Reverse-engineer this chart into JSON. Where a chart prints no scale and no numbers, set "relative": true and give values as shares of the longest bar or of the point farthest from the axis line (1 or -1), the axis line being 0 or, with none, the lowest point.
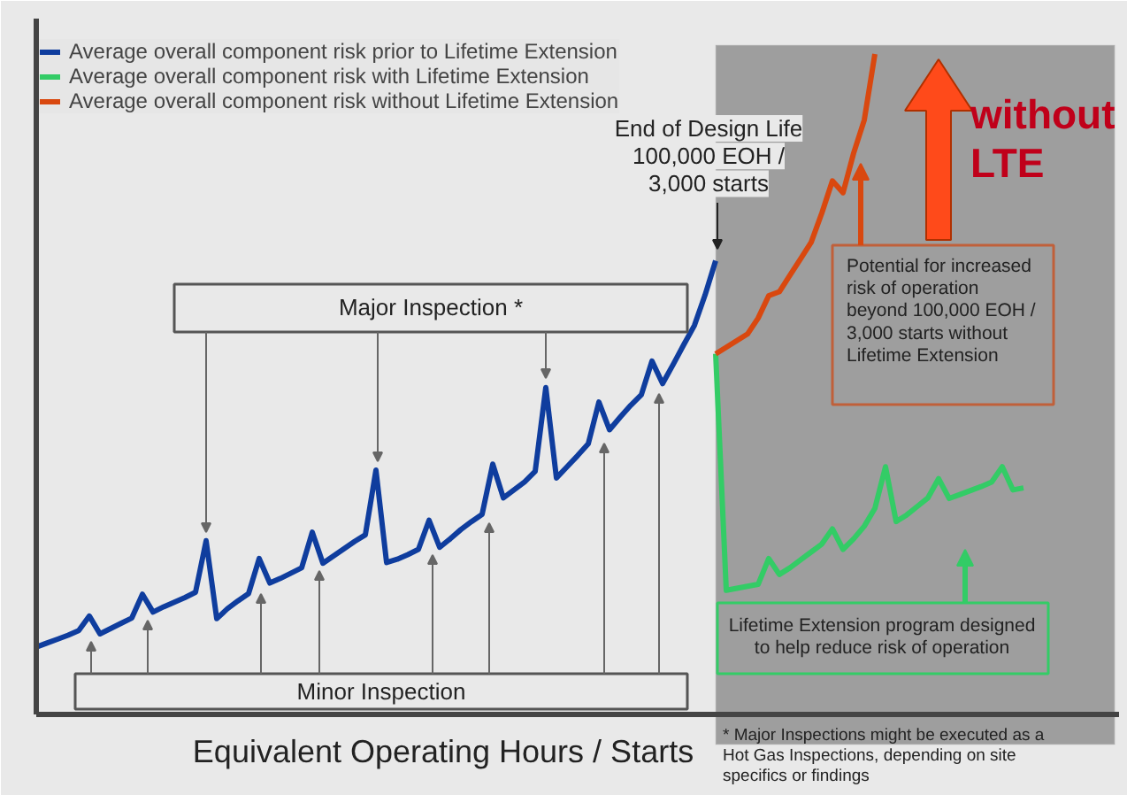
{
  "chart_data": {
    "type": "line",
    "relative": true,
    "xlabel": "Equivalent Operating Hours / Starts",
    "legend": "top left",
    "marker": "none",
    "line_style": "solid",
    "categories": [
      null,
      null,
      null,
      null,
      null,
      null,
      null,
      null,
      null,
      null,
      null,
      null,
      null,
      null,
      null,
      null,
      null,
      null,
      null,
      null,
      null,
      null,
      null,
      null,
      null,
      null,
      null,
      null,
      null,
      null,
      null,
      null,
      null,
      null,
      null,
      null,
      null,
      null,
      null,
      null,
      null,
      null,
      null,
      null,
      null,
      null,
      null,
      null,
      null,
      null,
      null,
      null,
      null,
      null,
      null,
      null,
      null,
      null,
      null,
      null,
      null,
      null,
      null,
      null,
      null,
      null,
      null,
      null,
      null,
      null,
      null,
      null,
      null,
      null,
      null,
      null,
      null,
      null,
      null,
      null,
      null,
      null,
      null,
      null,
      null,
      null,
      null,
      null,
      null,
      null,
      null,
      null,
      null,
      null,
      null,
      null,
      null,
      null,
      null,
      null,
      null,
      null
    ],
    "series": [
      {
        "name": "Average overall component risk prior to Lifetime Extension",
        "color": "#0f3d9e",
        "values": [
          0.102,
          0.108,
          0.114,
          0.12,
          0.127,
          0.149,
          0.122,
          0.13,
          0.138,
          0.146,
          0.182,
          0.155,
          0.163,
          0.17,
          0.177,
          0.185,
          0.263,
          0.145,
          0.16,
          0.172,
          0.183,
          0.236,
          0.199,
          0.206,
          0.214,
          0.222,
          0.276,
          0.229,
          0.24,
          0.251,
          0.262,
          0.272,
          0.37,
          0.23,
          0.235,
          0.242,
          0.25,
          0.294,
          0.253,
          0.266,
          0.28,
          0.292,
          0.303,
          0.379,
          0.328,
          0.34,
          0.352,
          0.368,
          0.495,
          0.358,
          0.375,
          0.392,
          0.41,
          0.473,
          0.431,
          0.45,
          0.468,
          0.484,
          0.535,
          0.501,
          0.53,
          0.56,
          0.589,
          0.635,
          0.687,
          null,
          null,
          null,
          null,
          null,
          null,
          null,
          null,
          null,
          null,
          null,
          null,
          null,
          null,
          null,
          null,
          null,
          null,
          null,
          null,
          null,
          null,
          null,
          null,
          null,
          null,
          null,
          null,
          null,
          null,
          null,
          null,
          null,
          null,
          null,
          null,
          null
        ]
      },
      {
        "name": "Average overall component risk with Lifetime Extension",
        "color": "#33cc66",
        "values": [
          null,
          null,
          null,
          null,
          null,
          null,
          null,
          null,
          null,
          null,
          null,
          null,
          null,
          null,
          null,
          null,
          null,
          null,
          null,
          null,
          null,
          null,
          null,
          null,
          null,
          null,
          null,
          null,
          null,
          null,
          null,
          null,
          null,
          null,
          null,
          null,
          null,
          null,
          null,
          null,
          null,
          null,
          null,
          null,
          null,
          null,
          null,
          null,
          null,
          null,
          null,
          null,
          null,
          null,
          null,
          null,
          null,
          null,
          null,
          null,
          null,
          null,
          null,
          null,
          0.546,
          0.188,
          0.191,
          0.194,
          0.197,
          0.236,
          0.212,
          0.222,
          0.234,
          0.246,
          0.258,
          0.281,
          0.25,
          0.266,
          0.285,
          0.312,
          0.375,
          0.292,
          0.302,
          0.315,
          0.328,
          0.357,
          0.327,
          0.333,
          0.339,
          0.345,
          0.352,
          0.375,
          0.34,
          0.343,
          null,
          null,
          null,
          null,
          null,
          null,
          null,
          null
        ]
      },
      {
        "name": "Average overall component risk without Lifetime Extension",
        "color": "#d9480f",
        "values": [
          null,
          null,
          null,
          null,
          null,
          null,
          null,
          null,
          null,
          null,
          null,
          null,
          null,
          null,
          null,
          null,
          null,
          null,
          null,
          null,
          null,
          null,
          null,
          null,
          null,
          null,
          null,
          null,
          null,
          null,
          null,
          null,
          null,
          null,
          null,
          null,
          null,
          null,
          null,
          null,
          null,
          null,
          null,
          null,
          null,
          null,
          null,
          null,
          null,
          null,
          null,
          null,
          null,
          null,
          null,
          null,
          null,
          null,
          null,
          null,
          null,
          null,
          null,
          null,
          0.546,
          0.556,
          0.566,
          0.576,
          0.6,
          0.634,
          0.64,
          0.665,
          0.69,
          0.715,
          0.759,
          0.808,
          0.79,
          0.85,
          0.9,
          1.0,
          null,
          null,
          null,
          null,
          null,
          null,
          null,
          null,
          null,
          null,
          null,
          null,
          null,
          null,
          null,
          null,
          null,
          null,
          null,
          null,
          null,
          null
        ]
      }
    ],
    "annotations": [
      "End of Design Life 100,000 EOH / 3,000 starts",
      "Major Inspection *",
      "Minor Inspection",
      "Potential for increased risk of operation beyond 100,000 EOH / 3,000 starts without Lifetime Extension",
      "Lifetime Extension program designed to help reduce risk of operation",
      "without LTE",
      "* Major Inspections might be executed as a Hot Gas Inspections, depending on site specifics or findings"
    ]
  }
}
